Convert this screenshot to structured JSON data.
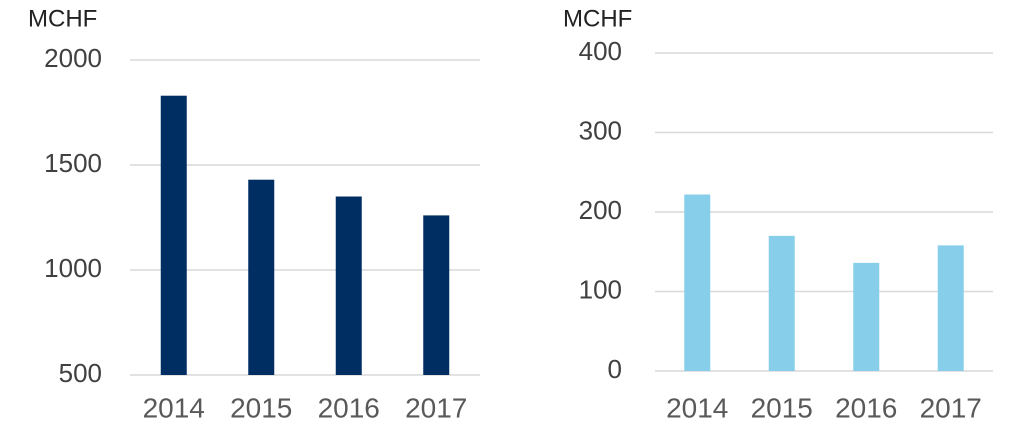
{
  "chart_data": [
    {
      "type": "bar",
      "y_label": "MCHF",
      "categories": [
        "2014",
        "2015",
        "2016",
        "2017"
      ],
      "values": [
        1830,
        1430,
        1350,
        1260
      ],
      "color": "#002d62",
      "ylim": [
        500,
        2000
      ],
      "yticks": [
        500,
        1000,
        1500,
        2000
      ],
      "grid": true
    },
    {
      "type": "bar",
      "y_label": "MCHF",
      "categories": [
        "2014",
        "2015",
        "2016",
        "2017"
      ],
      "values": [
        222,
        170,
        136,
        158
      ],
      "color": "#87ceeb",
      "ylim": [
        0,
        400
      ],
      "yticks": [
        0,
        100,
        200,
        300,
        400
      ],
      "grid": true
    }
  ]
}
